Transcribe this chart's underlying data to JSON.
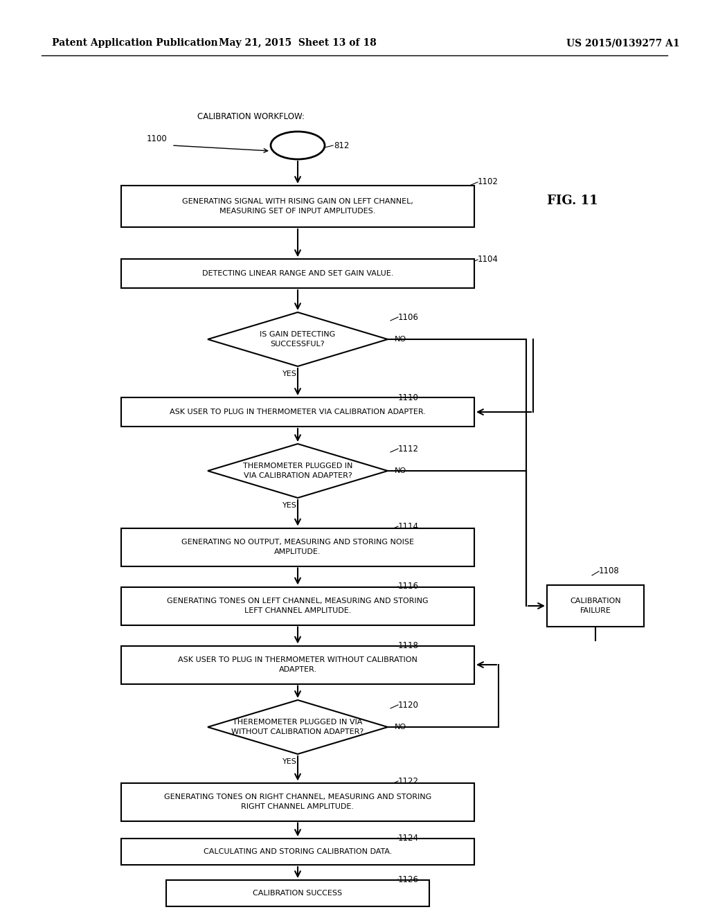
{
  "header_left": "Patent Application Publication",
  "header_mid": "May 21, 2015  Sheet 13 of 18",
  "header_right": "US 2015/0139277 A1",
  "fig_label": "FIG. 11",
  "background_color": "#ffffff",
  "workflow_label": "CALIBRATION WORKFLOW:",
  "oval_label": "812",
  "node_1100": "1100",
  "node_1102": "1102",
  "node_1104": "1104",
  "node_1106": "1106",
  "node_1108": "1108",
  "node_1110": "1110",
  "node_1112": "1112",
  "node_1114": "1114",
  "node_1116": "1116",
  "node_1118": "1118",
  "node_1120": "1120",
  "node_1122": "1122",
  "node_1124": "1124",
  "node_1126": "1126",
  "box1102_text": "GENERATING SIGNAL WITH RISING GAIN ON LEFT CHANNEL,\nMEASURING SET OF INPUT AMPLITUDES.",
  "box1104_text": "DETECTING LINEAR RANGE AND SET GAIN VALUE.",
  "dia1106_text": "IS GAIN DETECTING\nSUCCESSFUL?",
  "box1110_text": "ASK USER TO PLUG IN THERMOMETER VIA CALIBRATION ADAPTER.",
  "dia1112_text": "THERMOMETER PLUGGED IN\nVIA CALIBRATION ADAPTER?",
  "box1114_text": "GENERATING NO OUTPUT, MEASURING AND STORING NOISE\nAMPLITUDE.",
  "box1116_text": "GENERATING TONES ON LEFT CHANNEL, MEASURING AND STORING\nLEFT CHANNEL AMPLITUDE.",
  "box1118_text": "ASK USER TO PLUG IN THERMOMETER WITHOUT CALIBRATION\nADAPTER.",
  "dia1120_text": "THEREMOMETER PLUGGED IN VIA\nWITHOUT CALIBRATION ADAPTER?",
  "box1122_text": "GENERATING TONES ON RIGHT CHANNEL, MEASURING AND STORING\nRIGHT CHANNEL AMPLITUDE.",
  "box1124_text": "CALCULATING AND STORING CALIBRATION DATA.",
  "box1126_text": "CALIBRATION SUCCESS",
  "box1108_text": "CALIBRATION\nFAILURE",
  "yes_label": "YES",
  "no_label": "NO"
}
